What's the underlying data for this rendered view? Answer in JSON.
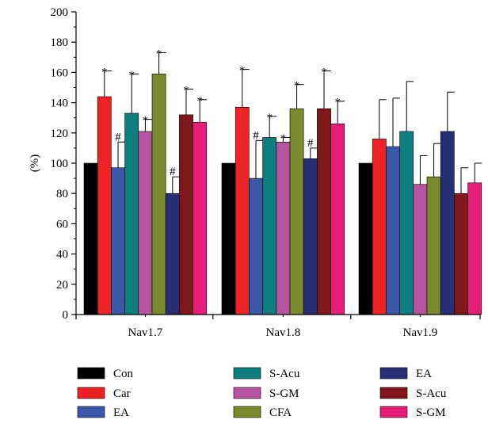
{
  "chart_data": {
    "type": "bar",
    "ylabel": "(%)",
    "xlabel": "",
    "ylim": [
      0,
      200
    ],
    "yticks": [
      0,
      20,
      40,
      60,
      80,
      100,
      120,
      140,
      160,
      180,
      200
    ],
    "categories": [
      "Nav1.7",
      "Nav1.8",
      "Nav1.9"
    ],
    "grid": false,
    "legend_position": "bottom",
    "series": [
      {
        "name": "Con",
        "color": "#000000",
        "values": [
          100,
          100,
          100
        ],
        "errors": [
          0,
          0,
          0
        ],
        "marks": [
          "",
          "",
          ""
        ]
      },
      {
        "name": "Car",
        "color": "#ee2325",
        "values": [
          144,
          137,
          116
        ],
        "errors": [
          17,
          25,
          26
        ],
        "marks": [
          "*",
          "*",
          ""
        ]
      },
      {
        "name": "EA",
        "color": "#3b58a8",
        "values": [
          97,
          90,
          111
        ],
        "errors": [
          17,
          25,
          32
        ],
        "marks": [
          "#",
          "#",
          ""
        ]
      },
      {
        "name": "S-Acu",
        "color": "#0e7f7e",
        "values": [
          133,
          117,
          121
        ],
        "errors": [
          26,
          14,
          33
        ],
        "marks": [
          "*",
          "*",
          ""
        ]
      },
      {
        "name": "S-GM",
        "color": "#b754a2",
        "values": [
          121,
          114,
          86
        ],
        "errors": [
          8,
          3,
          19
        ],
        "marks": [
          "*",
          "*",
          ""
        ]
      },
      {
        "name": "CFA",
        "color": "#7b8a2c",
        "values": [
          159,
          136,
          91
        ],
        "errors": [
          14,
          16,
          22
        ],
        "marks": [
          "*",
          "*",
          ""
        ]
      },
      {
        "name": "EA",
        "color": "#262f75",
        "values": [
          80,
          103,
          121
        ],
        "errors": [
          11,
          7,
          26
        ],
        "marks": [
          "#",
          "#",
          ""
        ]
      },
      {
        "name": "S-Acu",
        "color": "#80181b",
        "values": [
          132,
          136,
          80
        ],
        "errors": [
          17,
          25,
          17
        ],
        "marks": [
          "*",
          "*",
          ""
        ]
      },
      {
        "name": "S-GM",
        "color": "#e71e78",
        "values": [
          127,
          126,
          87
        ],
        "errors": [
          15,
          15,
          13
        ],
        "marks": [
          "*",
          "*",
          ""
        ]
      }
    ]
  }
}
